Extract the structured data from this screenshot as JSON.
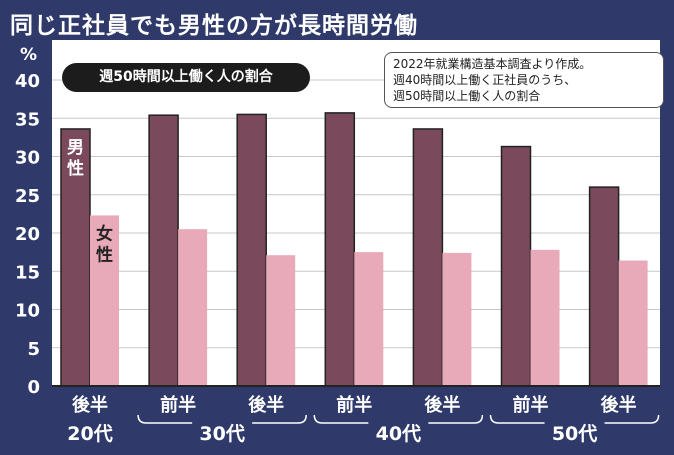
{
  "headline": "同じ正社員でも男性の方が長時間労働",
  "badge": "週50時間以上働く人の割合",
  "note": [
    "2022年就業構造基本調査より作成。",
    "週40時間以上働く正社員のうち、",
    "週50時間以上働く人の割合"
  ],
  "colors": {
    "background": "#2f3a6b",
    "plot": "#ffffff",
    "male": "#7a4a5c",
    "female": "#e8a9b9"
  },
  "chart_data": {
    "type": "bar",
    "title": "週50時間以上働く人の割合",
    "ylabel": "%",
    "ylim": [
      0,
      40
    ],
    "yticks": [
      "0",
      "5",
      "10",
      "15",
      "20",
      "25",
      "30",
      "35",
      "40"
    ],
    "grid": true,
    "categories": [
      "後半",
      "前半",
      "後半",
      "前半",
      "後半",
      "前半",
      "後半"
    ],
    "groups": [
      {
        "label": "20代",
        "span": [
          0,
          0
        ]
      },
      {
        "label": "30代",
        "span": [
          1,
          2
        ]
      },
      {
        "label": "40代",
        "span": [
          3,
          4
        ]
      },
      {
        "label": "50代",
        "span": [
          5,
          6
        ]
      }
    ],
    "series": [
      {
        "name": "男性",
        "values": [
          33.6,
          35.4,
          35.5,
          35.7,
          33.6,
          31.3,
          26.0
        ]
      },
      {
        "name": "女性",
        "values": [
          22.3,
          20.5,
          17.1,
          17.5,
          17.4,
          17.8,
          16.4
        ]
      }
    ],
    "series_labels": [
      {
        "name": "男性",
        "lines": [
          "男",
          "性"
        ]
      },
      {
        "name": "女性",
        "lines": [
          "女",
          "性"
        ]
      }
    ]
  }
}
